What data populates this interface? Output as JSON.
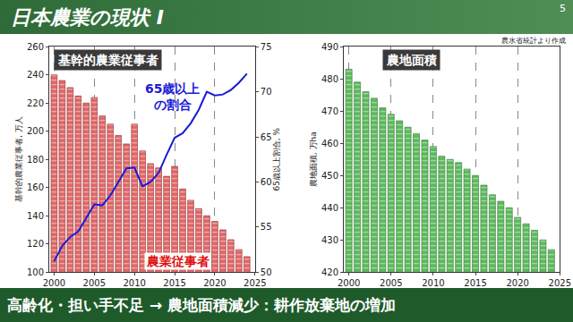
{
  "page": {
    "title": "日本農業の現状 I",
    "number": 5,
    "source": "農水省統計より作成",
    "conclusion": "高齢化・担い手不足 → 農地面積減少：耕作放棄地の増加"
  },
  "chart_data": [
    {
      "type": "bar",
      "title": "基幹的農業従事者",
      "x": [
        2000,
        2001,
        2002,
        2003,
        2004,
        2005,
        2006,
        2007,
        2008,
        2009,
        2010,
        2011,
        2012,
        2013,
        2014,
        2015,
        2016,
        2017,
        2018,
        2019,
        2020,
        2021,
        2022,
        2023,
        2024
      ],
      "xlim": [
        1999.4,
        2025
      ],
      "xticks": [
        2000,
        2005,
        2010,
        2015,
        2020,
        2025
      ],
      "ylim": [
        100,
        260
      ],
      "yticks": [
        100,
        120,
        140,
        160,
        180,
        200,
        220,
        240,
        260
      ],
      "y_label": "基幹的農業従事者, 万人",
      "y2lim": [
        50,
        75
      ],
      "y2ticks": [
        50,
        55,
        60,
        65,
        70,
        75
      ],
      "y2_label": "65歳以上割合, %",
      "grid": true,
      "series": [
        {
          "name": "農業従事者",
          "type": "bar",
          "color": "#e06666",
          "values": [
            240,
            236,
            231,
            225,
            220,
            224,
            211,
            205,
            197,
            191,
            205,
            186,
            177,
            174,
            168,
            175,
            159,
            151,
            145,
            140,
            136,
            130,
            123,
            116,
            111
          ]
        },
        {
          "name": "65歳以上\nの割合",
          "type": "line",
          "axis": "y2",
          "color": "#1a1ad6",
          "values": [
            51.2,
            52.9,
            53.9,
            54.5,
            56.0,
            57.5,
            57.4,
            58.5,
            60.0,
            61.5,
            61.6,
            59.5,
            60.0,
            61.0,
            63.0,
            64.9,
            65.4,
            66.5,
            68.0,
            70.0,
            69.6,
            69.7,
            70.2,
            71.0,
            72.0
          ]
        }
      ]
    },
    {
      "type": "bar",
      "title": "農地面積",
      "x": [
        2000,
        2001,
        2002,
        2003,
        2004,
        2005,
        2006,
        2007,
        2008,
        2009,
        2010,
        2011,
        2012,
        2013,
        2014,
        2015,
        2016,
        2017,
        2018,
        2019,
        2020,
        2021,
        2022,
        2023,
        2024
      ],
      "xlim": [
        1999.4,
        2025
      ],
      "xticks": [
        2000,
        2005,
        2010,
        2015,
        2020,
        2025
      ],
      "ylim": [
        420,
        490
      ],
      "yticks": [
        420,
        430,
        440,
        450,
        460,
        470,
        480,
        490
      ],
      "y_label": "農地面積, 万ha",
      "grid": true,
      "series": [
        {
          "type": "bar",
          "color": "#5cb85c",
          "values": [
            483,
            479,
            476,
            474,
            471,
            469,
            467,
            465,
            463,
            461,
            459,
            456,
            455,
            454,
            452,
            450,
            447,
            444,
            442,
            440,
            437,
            435,
            433,
            430,
            427
          ]
        }
      ]
    }
  ]
}
